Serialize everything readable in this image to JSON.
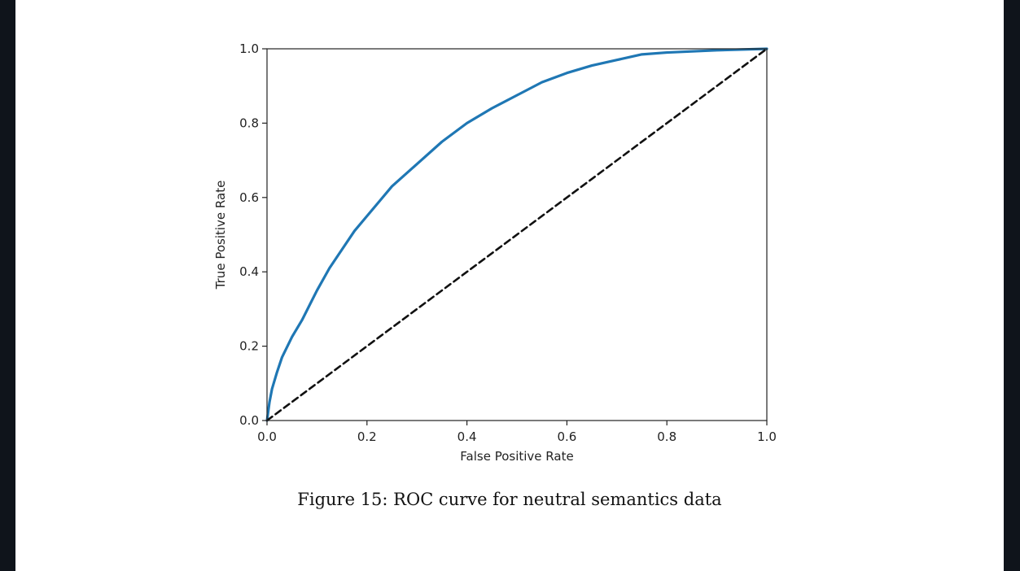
{
  "figure": {
    "caption": "Figure 15: ROC curve for neutral semantics data"
  },
  "chart_data": {
    "type": "line",
    "xlabel": "False Positive Rate",
    "ylabel": "True Positive Rate",
    "xlim": [
      0.0,
      1.0
    ],
    "ylim": [
      0.0,
      1.0
    ],
    "x_ticks": [
      "0.0",
      "0.2",
      "0.4",
      "0.6",
      "0.8",
      "1.0"
    ],
    "y_ticks": [
      "0.0",
      "0.2",
      "0.4",
      "0.6",
      "0.8",
      "1.0"
    ],
    "grid": false,
    "legend": "none",
    "series": [
      {
        "color": "#1f77b4",
        "style": "solid",
        "x": [
          0.0,
          0.005,
          0.01,
          0.02,
          0.03,
          0.05,
          0.07,
          0.1,
          0.125,
          0.15,
          0.175,
          0.2,
          0.225,
          0.25,
          0.3,
          0.35,
          0.4,
          0.45,
          0.5,
          0.55,
          0.6,
          0.65,
          0.7,
          0.75,
          0.8,
          0.85,
          0.9,
          0.95,
          1.0
        ],
        "y": [
          0.0,
          0.05,
          0.085,
          0.13,
          0.17,
          0.225,
          0.27,
          0.35,
          0.41,
          0.46,
          0.51,
          0.55,
          0.59,
          0.63,
          0.69,
          0.75,
          0.8,
          0.84,
          0.875,
          0.91,
          0.935,
          0.955,
          0.97,
          0.985,
          0.99,
          0.993,
          0.996,
          0.998,
          1.0
        ]
      },
      {
        "color": "#111111",
        "style": "dashed",
        "x": [
          0.0,
          1.0
        ],
        "y": [
          0.0,
          1.0
        ]
      }
    ]
  }
}
